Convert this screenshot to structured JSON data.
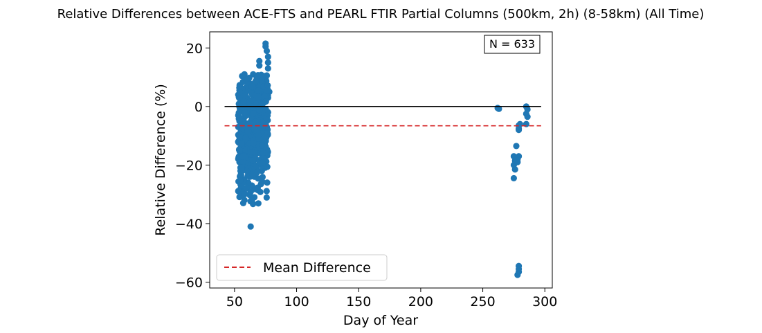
{
  "chart_data": {
    "type": "scatter",
    "title": "Relative Differences between ACE-FTS and PEARL FTIR Partial Columns (500km, 2h) (8-58km) (All Time)",
    "xlabel": "Day of Year",
    "ylabel": "Relative Difference (%)",
    "xlim": [
      30,
      306
    ],
    "ylim": [
      -62,
      25.5
    ],
    "xticks": [
      50,
      100,
      150,
      200,
      250,
      300
    ],
    "yticks": [
      20,
      0,
      -20,
      -40,
      -60
    ],
    "ytick_labels": [
      "20",
      "0",
      "−20",
      "−40",
      "−60"
    ],
    "annotation": "N = 633",
    "legend": {
      "position": "lower-left",
      "entries": [
        "Mean Difference"
      ]
    },
    "grid": false,
    "colors": {
      "points": "#1f77b4",
      "mean_line": "#d62728",
      "zero_line": "#000000"
    },
    "zero_line": {
      "y": 0,
      "x_start": 42,
      "x_end": 297
    },
    "mean_difference": {
      "y": -6.6,
      "x_start": 42,
      "x_end": 297
    },
    "clusters": [
      {
        "x_range": [
          52,
          78
        ],
        "y_range": [
          -33,
          21
        ],
        "note": "dense spring cluster"
      }
    ],
    "points": [
      [
        63,
        -41
      ],
      [
        75,
        21.5
      ],
      [
        75,
        20.5
      ],
      [
        76,
        19
      ],
      [
        77,
        17
      ],
      [
        77,
        15
      ],
      [
        77,
        13
      ],
      [
        70,
        15.5
      ],
      [
        70,
        14
      ],
      [
        65,
        11
      ],
      [
        58,
        11
      ],
      [
        58,
        10
      ],
      [
        68,
        10
      ],
      [
        72,
        10
      ],
      [
        54,
        5.5
      ],
      [
        53,
        4
      ],
      [
        55,
        2
      ],
      [
        54,
        0
      ],
      [
        53,
        -3
      ],
      [
        54,
        -5
      ],
      [
        53,
        -7
      ],
      [
        55,
        -9
      ],
      [
        53,
        -12
      ],
      [
        54,
        -15
      ],
      [
        54,
        -19
      ],
      [
        55,
        -22
      ],
      [
        56,
        -25
      ],
      [
        55,
        -28
      ],
      [
        57,
        -30
      ],
      [
        58,
        -32
      ],
      [
        57,
        -33
      ],
      [
        60,
        -28
      ],
      [
        62,
        -30
      ],
      [
        66,
        -31
      ],
      [
        64,
        -27
      ],
      [
        61,
        -26
      ],
      [
        66,
        -24
      ],
      [
        69,
        -22
      ],
      [
        72,
        -22
      ],
      [
        70,
        -20
      ],
      [
        72,
        -18
      ],
      [
        75,
        -14
      ],
      [
        74,
        -9
      ],
      [
        76,
        -8
      ],
      [
        73,
        -5
      ],
      [
        77,
        -2
      ],
      [
        77,
        3
      ],
      [
        78,
        5
      ],
      [
        74,
        6
      ],
      [
        70,
        7
      ],
      [
        67,
        5
      ],
      [
        62,
        8
      ],
      [
        60,
        3
      ],
      [
        65,
        2
      ],
      [
        63,
        -1
      ],
      [
        68,
        -3
      ],
      [
        66,
        -6
      ],
      [
        64,
        -9
      ],
      [
        61,
        -12
      ],
      [
        59,
        -16
      ],
      [
        62,
        -19
      ],
      [
        65,
        -15
      ],
      [
        69,
        -12
      ],
      [
        71,
        -8
      ],
      [
        68,
        -2
      ],
      [
        72,
        1
      ],
      [
        58,
        -6
      ],
      [
        60,
        -9
      ],
      [
        57,
        -12
      ],
      [
        59,
        -20
      ],
      [
        63,
        -22
      ],
      [
        67,
        -18
      ],
      [
        70,
        -14
      ],
      [
        262,
        -0.5
      ],
      [
        263,
        -0.8
      ],
      [
        275,
        -17
      ],
      [
        276,
        -18.5
      ],
      [
        275,
        -20
      ],
      [
        276,
        -21.5
      ],
      [
        275,
        -24.5
      ],
      [
        277,
        -13.5
      ],
      [
        278,
        -18
      ],
      [
        279,
        -17
      ],
      [
        278,
        -19
      ],
      [
        279,
        -6.5
      ],
      [
        279,
        -7.5
      ],
      [
        280,
        -6
      ],
      [
        279,
        -8
      ],
      [
        285,
        0
      ],
      [
        286,
        -1
      ],
      [
        285,
        -2.5
      ],
      [
        286,
        -3.5
      ],
      [
        285,
        -6
      ],
      [
        279,
        -54.5
      ],
      [
        279,
        -55.5
      ],
      [
        279,
        -56.5
      ],
      [
        278,
        -57.5
      ]
    ]
  }
}
